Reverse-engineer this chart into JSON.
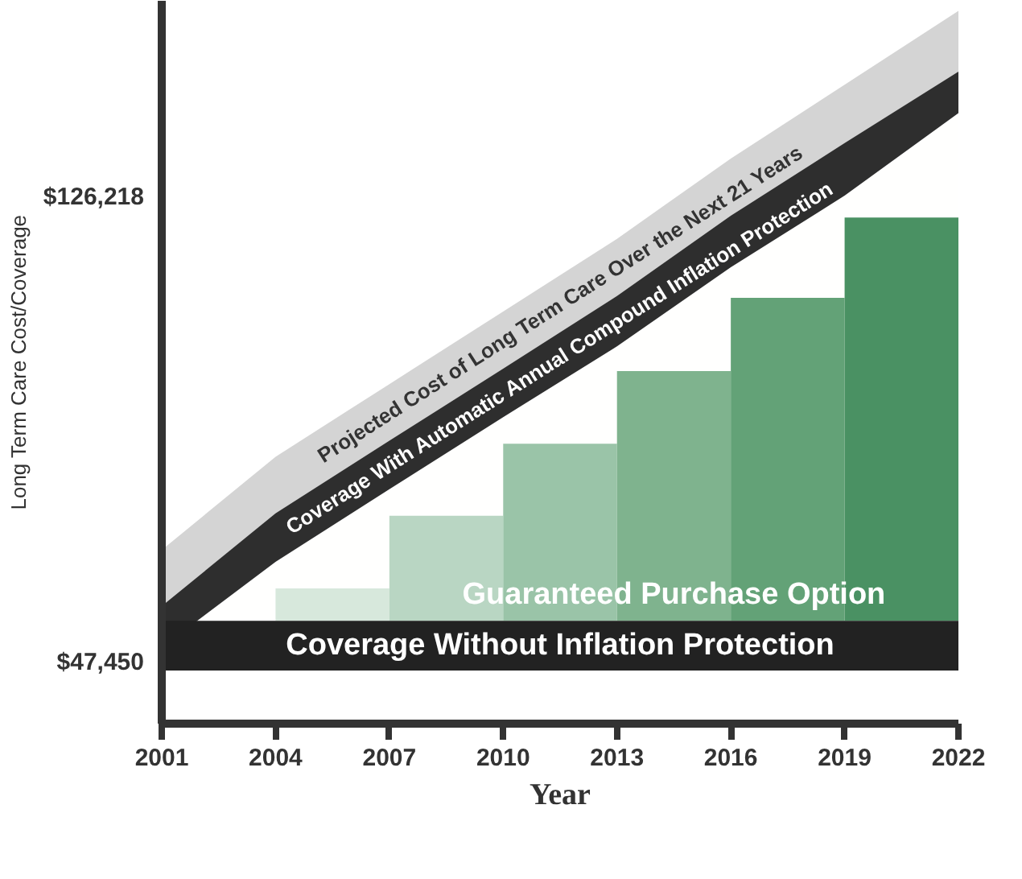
{
  "chart_data": {
    "type": "area",
    "xlabel": "Year",
    "ylabel": "Long Term Care Cost/Coverage",
    "xlim": [
      2001,
      2022
    ],
    "ylim": [
      37100,
      159500
    ],
    "xticks": [
      2001,
      2004,
      2007,
      2010,
      2013,
      2016,
      2019,
      2022
    ],
    "yticks": [
      {
        "value": 47450,
        "label": "$47,450"
      },
      {
        "value": 126218,
        "label": "$126,218"
      }
    ],
    "series": [
      {
        "name": "Projected Cost of Long Term Care Over the Next 21 Years",
        "color": "#d4d4d4",
        "x": [
          2001,
          2004,
          2007,
          2010,
          2013,
          2016,
          2019,
          2022
        ],
        "values": [
          66500,
          82300,
          94600,
          106900,
          119200,
          132800,
          145300,
          157800
        ]
      },
      {
        "name": "Coverage With Automatic Annual Compound Inflation Protection",
        "color": "#2e2e2e",
        "x": [
          2001,
          2004,
          2007,
          2010,
          2013,
          2016,
          2019,
          2022
        ],
        "values": [
          57000,
          72700,
          85000,
          97200,
          109500,
          123100,
          135400,
          147500
        ]
      },
      {
        "color": "#fffffe",
        "x": [
          2001,
          2004,
          2007,
          2010,
          2013,
          2016,
          2019,
          2022
        ],
        "values": [
          50000,
          64500,
          76800,
          89000,
          101000,
          114400,
          126500,
          140500
        ]
      },
      {
        "name": "Guaranteed Purchase Option",
        "type": "bar",
        "x": [
          2005.5,
          2008.5,
          2011.5,
          2014.5,
          2017.5,
          2020.5
        ],
        "base": [
          54500,
          54500,
          54500,
          54500,
          54500,
          54500
        ],
        "values": [
          5500,
          17800,
          30000,
          42300,
          54700,
          68300
        ],
        "colors": [
          "#d7e8dc",
          "#b9d6c3",
          "#9ac4a8",
          "#7fb38e",
          "#63a277",
          "#4a9163"
        ]
      },
      {
        "name": "Coverage Without Inflation Protection",
        "color": "#222222",
        "x": [
          2001,
          2022
        ],
        "values": [
          54500,
          54500
        ]
      },
      {
        "color": "#ffffff",
        "x": [
          2001,
          2022
        ],
        "values": [
          46100,
          46100
        ]
      }
    ]
  }
}
